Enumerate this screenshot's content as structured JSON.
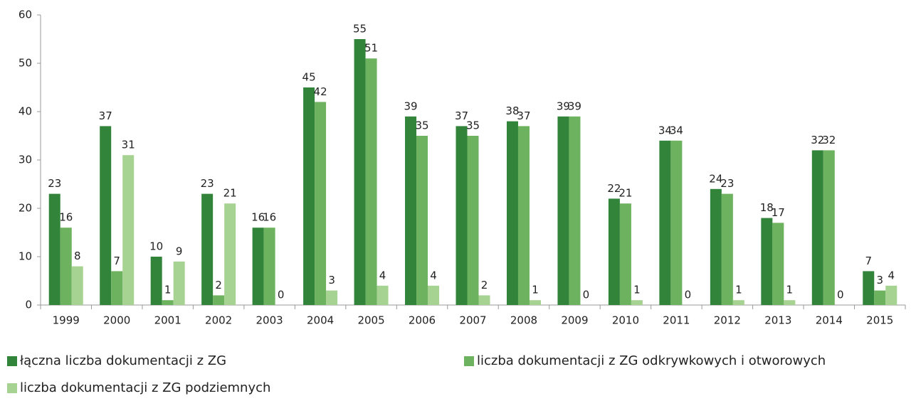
{
  "chart_data": {
    "type": "bar",
    "categories": [
      "1999",
      "2000",
      "2001",
      "2002",
      "2003",
      "2004",
      "2005",
      "2006",
      "2007",
      "2008",
      "2009",
      "2010",
      "2011",
      "2012",
      "2013",
      "2014",
      "2015"
    ],
    "series": [
      {
        "name": "łączna liczba dokumentacji z ZG",
        "color": "#31843a",
        "values": [
          23,
          37,
          10,
          23,
          16,
          45,
          55,
          39,
          37,
          38,
          39,
          22,
          34,
          24,
          18,
          32,
          7
        ]
      },
      {
        "name": "liczba dokumentacji z ZG odkrywkowych i otworowych",
        "color": "#6db25e",
        "values": [
          16,
          7,
          1,
          2,
          16,
          42,
          51,
          35,
          35,
          37,
          39,
          21,
          34,
          23,
          17,
          32,
          3
        ]
      },
      {
        "name": "liczba dokumentacji z ZG podziemnych",
        "color": "#a6d292",
        "values": [
          8,
          31,
          9,
          21,
          0,
          3,
          4,
          4,
          2,
          1,
          0,
          1,
          0,
          1,
          1,
          0,
          4
        ]
      }
    ],
    "ylim": [
      0,
      60
    ],
    "yticks": [
      0,
      10,
      20,
      30,
      40,
      50,
      60
    ],
    "grid": false,
    "legend": "bottom"
  }
}
